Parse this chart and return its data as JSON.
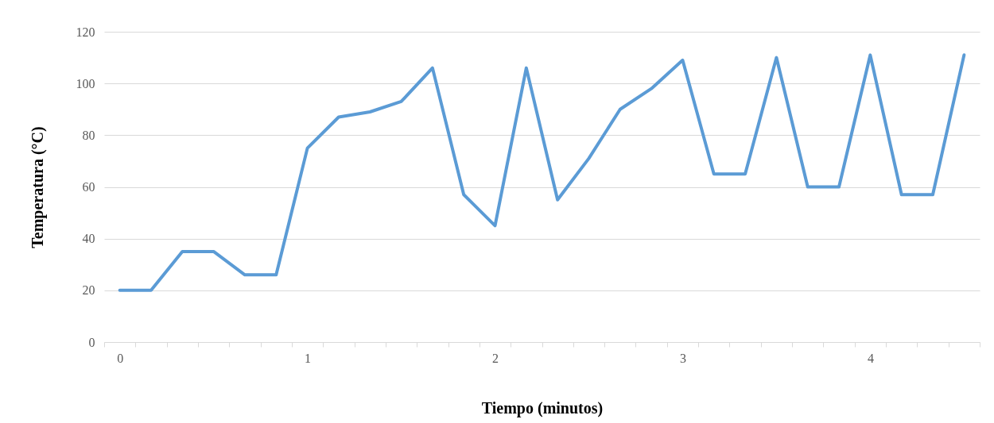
{
  "chart_data": {
    "type": "line",
    "xlabel": "Tiempo (minutos)",
    "ylabel": "Temperatura (°C)",
    "categories": [
      "0",
      null,
      null,
      null,
      null,
      null,
      "1",
      null,
      null,
      null,
      null,
      null,
      "2",
      null,
      null,
      null,
      null,
      null,
      "3",
      null,
      null,
      null,
      null,
      null,
      "4",
      null,
      null,
      null
    ],
    "series": [
      {
        "color": "#5b9bd5",
        "values": [
          20,
          20,
          35,
          35,
          26,
          26,
          75,
          87,
          89,
          93,
          106,
          57,
          45,
          106,
          55,
          71,
          90,
          98,
          109,
          65,
          65,
          110,
          60,
          60,
          111,
          57,
          57,
          111
        ]
      }
    ],
    "ylim": [
      0,
      120
    ],
    "yticks": [
      0,
      20,
      40,
      60,
      80,
      100,
      120
    ],
    "grid": "y",
    "marker": "none",
    "line_style": "solid"
  }
}
